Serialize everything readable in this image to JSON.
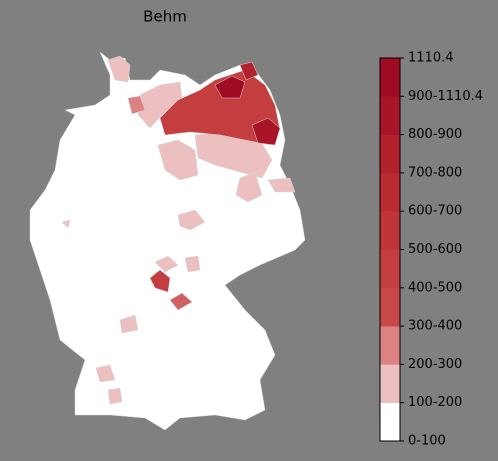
{
  "title": "Behm",
  "colorbar": {
    "labels": [
      "0-100",
      "100-200",
      "200-300",
      "300-400",
      "400-500",
      "500-600",
      "600-700",
      "700-800",
      "800-900",
      "900-1110.4",
      "1110.4"
    ],
    "colors": [
      "#ffffff",
      "#ecc0c0",
      "#dc8282",
      "#c84848",
      "#c43e40",
      "#bf3538",
      "#b92a31",
      "#b3222c",
      "#aa1428",
      "#a00a22"
    ]
  }
}
